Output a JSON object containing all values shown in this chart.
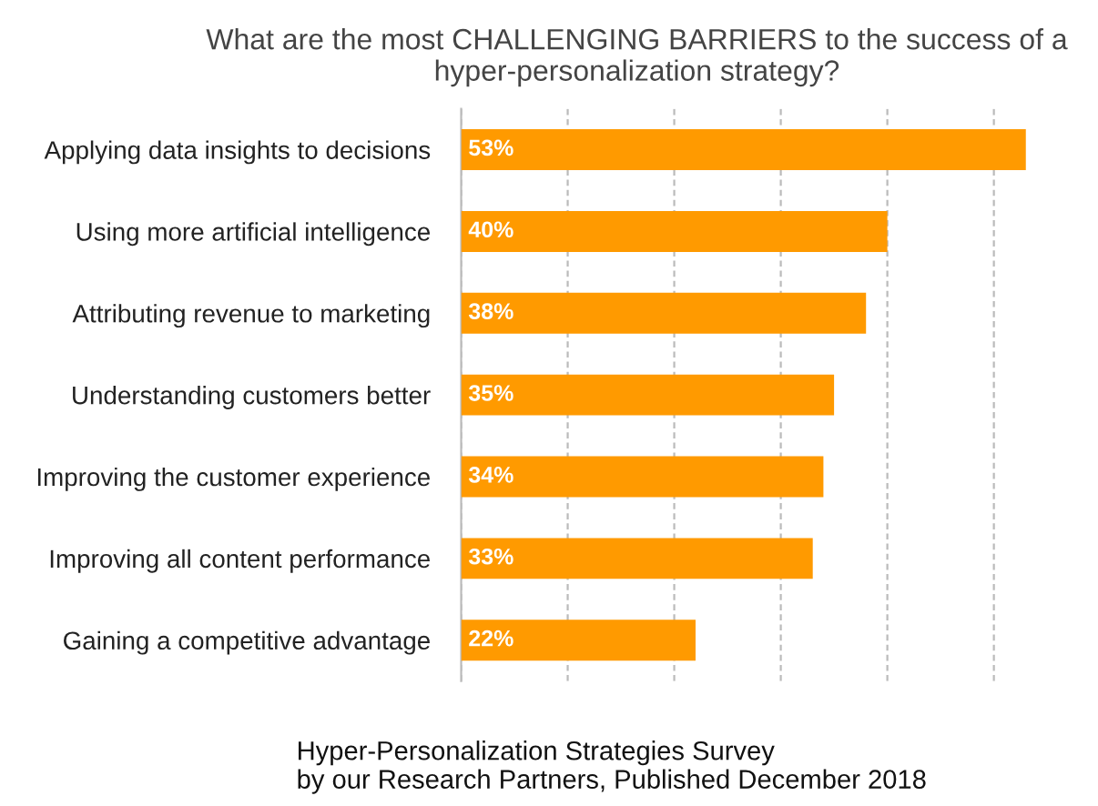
{
  "chart_data": {
    "type": "bar",
    "orientation": "horizontal",
    "title": "What are the most CHALLENGING BARRIERS to the success of a hyper-personalization strategy?",
    "categories": [
      "Applying data insights to decisions",
      "Using more artificial intelligence",
      "Attributing revenue to marketing",
      "Understanding customers better",
      "Improving the customer experience",
      "Improving all content performance",
      "Gaining a competitive advantage"
    ],
    "values": [
      53,
      40,
      38,
      35,
      34,
      33,
      22
    ],
    "value_labels": [
      "53%",
      "40%",
      "38%",
      "35%",
      "34%",
      "33%",
      "22%"
    ],
    "color": "#ff9a00",
    "xticks": [
      {
        "value": 0,
        "label": null
      },
      {
        "value": 10,
        "label": null
      },
      {
        "value": 20,
        "label": null
      },
      {
        "value": 30,
        "label": null
      },
      {
        "value": 40,
        "label": null
      },
      {
        "value": 50,
        "label": null
      }
    ],
    "tick_labels": "y",
    "grid": "x",
    "annotations": [
      "Hyper-Personalization Strategies Survey\nby our Research Partners, Published December 2018"
    ]
  }
}
